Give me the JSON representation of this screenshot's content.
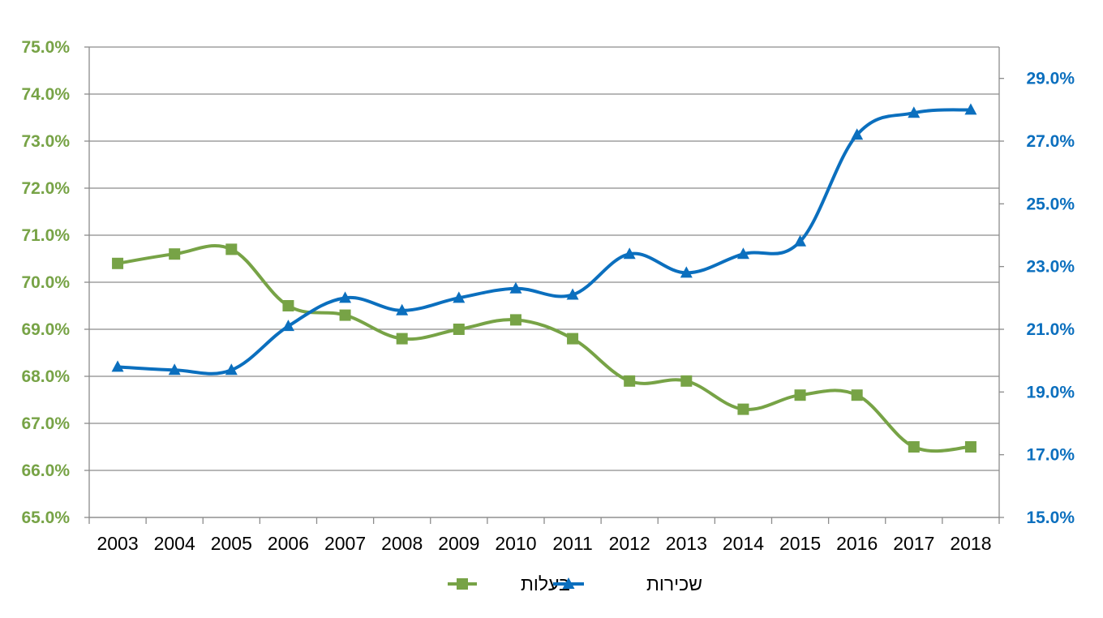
{
  "chart_data": {
    "type": "line",
    "categories": [
      "2003",
      "2004",
      "2005",
      "2006",
      "2007",
      "2008",
      "2009",
      "2010",
      "2011",
      "2012",
      "2013",
      "2014",
      "2015",
      "2016",
      "2017",
      "2018"
    ],
    "series": [
      {
        "name": "בעלות",
        "axis": "left",
        "color": "#77A346",
        "marker": "square",
        "values": [
          70.4,
          70.6,
          70.7,
          69.5,
          69.3,
          68.8,
          69.0,
          69.2,
          68.8,
          67.9,
          67.9,
          67.3,
          67.6,
          67.6,
          66.5,
          66.5
        ]
      },
      {
        "name": "שכירות",
        "axis": "right",
        "color": "#0B6FBE",
        "marker": "triangle",
        "values": [
          19.8,
          19.7,
          19.7,
          21.1,
          22.0,
          21.6,
          22.0,
          22.3,
          22.1,
          23.4,
          22.8,
          23.4,
          23.8,
          27.2,
          27.9,
          28.0
        ]
      }
    ],
    "y_left": {
      "ylim": [
        65.0,
        75.0
      ],
      "ticks": [
        "65.0%",
        "66.0%",
        "67.0%",
        "68.0%",
        "69.0%",
        "70.0%",
        "71.0%",
        "72.0%",
        "73.0%",
        "74.0%",
        "75.0%"
      ],
      "color": "#77A346"
    },
    "y_right": {
      "ylim": [
        15.0,
        30.0
      ],
      "ticks": [
        "15.0%",
        "17.0%",
        "19.0%",
        "21.0%",
        "23.0%",
        "25.0%",
        "27.0%",
        "29.0%"
      ],
      "color": "#0B6FBE"
    },
    "grid": true,
    "legend_position": "bottom"
  }
}
